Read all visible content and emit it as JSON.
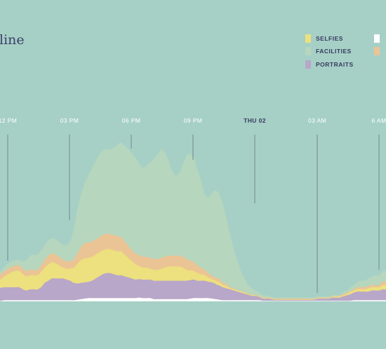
{
  "chart_data": {
    "type": "area",
    "stacked": true,
    "title": "line",
    "x_ticks": [
      "12 PM",
      "03 PM",
      "06 PM",
      "09 PM",
      "THU 02",
      "03 AM",
      "6 AM"
    ],
    "x": [
      0,
      1,
      2,
      3,
      4,
      5,
      6,
      7,
      8,
      9,
      10,
      11,
      12,
      13,
      14,
      15,
      16,
      17,
      18,
      19,
      20,
      21,
      22,
      23,
      24,
      25,
      26,
      27,
      28,
      29,
      30,
      31,
      32,
      33,
      34,
      35,
      36,
      37,
      38,
      39,
      40,
      41,
      42,
      43,
      44,
      45,
      46,
      47,
      48,
      49,
      50,
      51,
      52,
      53,
      54,
      55,
      56,
      57,
      58,
      59,
      60,
      61,
      62,
      63,
      64,
      65,
      66,
      67,
      68,
      69,
      70,
      71,
      72,
      73,
      74,
      75,
      76,
      77,
      78,
      79,
      80,
      81,
      82,
      83,
      84,
      85,
      86,
      87,
      88,
      89,
      90,
      91,
      92,
      93,
      94,
      95,
      96,
      97,
      98,
      99,
      100,
      101,
      102,
      103,
      104,
      105,
      106,
      107,
      108,
      109,
      110
    ],
    "series": [
      {
        "name": "",
        "color": "#ffffff",
        "values": [
          0,
          0,
          0,
          0.5,
          1,
          1,
          1,
          1,
          1,
          1,
          1,
          1,
          1,
          1,
          1,
          1,
          1,
          1,
          1,
          1,
          1,
          1,
          1,
          1,
          1.5,
          2,
          2.5,
          3,
          3,
          3,
          3,
          3,
          3,
          3,
          3,
          3,
          3,
          3,
          3,
          3,
          3,
          3.5,
          3,
          3,
          3,
          2,
          2,
          2,
          2,
          2,
          2,
          2,
          2,
          2,
          2,
          2.5,
          3,
          3,
          3,
          3,
          3,
          2.5,
          2,
          1.5,
          1,
          1,
          1,
          1,
          1,
          1,
          1,
          1,
          1,
          1,
          1,
          0.5,
          0.5,
          0.5,
          0.5,
          0.5,
          0.5,
          0.5,
          0.5,
          0.5,
          0.5,
          0.5,
          0.5,
          0.5,
          0.5,
          0.5,
          0.5,
          0.5,
          0.5,
          0.5,
          0.5,
          0.5,
          0.5,
          0.5,
          0.5,
          0.5,
          1,
          1,
          1,
          1,
          1,
          1,
          1,
          1,
          1,
          1,
          1
        ]
      },
      {
        "name": "PORTRAITS",
        "color": "#b8a7c8",
        "values": [
          14,
          12,
          12,
          12,
          12,
          12,
          12,
          12,
          12,
          10,
          9,
          10,
          10,
          10,
          12,
          16,
          18,
          20,
          20,
          20,
          20,
          19,
          18,
          16,
          15,
          15,
          15,
          15,
          16,
          18,
          20,
          22,
          23,
          23,
          22,
          21,
          21,
          20,
          19,
          18,
          17,
          17,
          17,
          17,
          17,
          17,
          17,
          17,
          17,
          17,
          17,
          17,
          17,
          17,
          17,
          17,
          17,
          16,
          16,
          16,
          15,
          15,
          14,
          13,
          12,
          11,
          10,
          9,
          8,
          7,
          6,
          5,
          4,
          4,
          3,
          2,
          2,
          2,
          1,
          1,
          1,
          1,
          1,
          1,
          1,
          1,
          1,
          1,
          1,
          1,
          2,
          2,
          2,
          2,
          3,
          3,
          3,
          4,
          5,
          6,
          7,
          8,
          8,
          8,
          8,
          9,
          9,
          9,
          10,
          10,
          11
        ]
      },
      {
        "name": "SELFIES",
        "color": "#ede07e",
        "values": [
          8,
          6,
          6,
          8,
          10,
          12,
          14,
          15,
          15,
          14,
          13,
          13,
          13,
          13,
          14,
          14,
          15,
          15,
          14,
          12,
          10,
          10,
          11,
          14,
          18,
          21,
          22,
          22,
          22,
          22,
          22,
          22,
          22,
          22,
          22,
          22,
          22,
          20,
          18,
          16,
          14,
          12,
          11,
          11,
          10,
          10,
          10,
          11,
          12,
          13,
          13,
          13,
          13,
          12,
          10,
          9,
          8,
          7,
          6,
          5,
          4,
          3,
          3,
          3,
          2,
          2,
          1,
          1,
          1,
          1,
          1,
          0.5,
          0.5,
          0.5,
          0.5,
          0.5,
          0.5,
          0.5,
          0.5,
          0.5,
          0.5,
          0.5,
          0.5,
          0.5,
          0.5,
          0.5,
          0.5,
          0.5,
          0.5,
          0.5,
          0.5,
          0.5,
          0.5,
          0.5,
          0.5,
          1,
          1,
          1,
          1,
          2,
          2,
          2,
          2,
          2,
          3,
          3,
          3,
          3,
          4,
          4,
          4
        ]
      },
      {
        "name": "",
        "color": "#ebc495",
        "values": [
          5,
          4,
          4,
          5,
          5,
          5,
          5,
          5,
          5,
          5,
          5,
          5,
          5,
          5,
          6,
          7,
          8,
          8,
          8,
          8,
          7,
          7,
          7,
          8,
          10,
          12,
          14,
          14,
          14,
          14,
          14,
          14,
          14,
          14,
          14,
          14,
          13,
          12,
          11,
          10,
          10,
          10,
          10,
          10,
          10,
          10,
          10,
          10,
          10,
          10,
          10,
          10,
          10,
          10,
          10,
          9,
          8,
          7,
          6,
          5,
          4,
          3,
          3,
          3,
          2,
          2,
          1,
          1,
          0.5,
          0.5,
          0.5,
          0.5,
          0.5,
          0.5,
          0.5,
          0.5,
          0.5,
          0.5,
          0.5,
          0.5,
          0.5,
          0.5,
          0.5,
          0.5,
          0.5,
          0.5,
          0.5,
          0.5,
          0.5,
          0.5,
          0.5,
          0.5,
          0.5,
          0.5,
          0.5,
          0.5,
          0.5,
          1,
          1,
          1,
          1,
          2,
          2,
          2,
          2,
          2,
          2,
          2,
          3,
          3,
          3
        ]
      },
      {
        "name": "FACILITIES",
        "color": "#b6d6bd",
        "values": [
          4,
          3,
          3,
          3,
          4,
          5,
          5,
          5,
          5,
          7,
          10,
          13,
          14,
          14,
          14,
          14,
          14,
          14,
          14,
          14,
          14,
          15,
          18,
          28,
          40,
          48,
          55,
          62,
          67,
          72,
          76,
          78,
          78,
          78,
          80,
          84,
          87,
          88,
          89,
          89,
          88,
          84,
          82,
          84,
          88,
          92,
          96,
          100,
          96,
          88,
          78,
          74,
          76,
          85,
          95,
          98,
          96,
          88,
          80,
          70,
          70,
          76,
          80,
          78,
          72,
          60,
          48,
          36,
          26,
          18,
          12,
          8,
          6,
          4,
          3,
          2,
          2,
          1,
          1,
          1,
          1,
          1,
          1,
          1,
          1,
          1,
          1,
          1,
          1,
          1,
          1,
          1,
          1,
          1,
          1,
          1,
          1,
          2,
          2,
          3,
          4,
          5,
          6,
          6,
          7,
          8,
          9,
          9,
          10,
          10,
          10
        ]
      }
    ],
    "legend_placement": "top-right"
  }
}
